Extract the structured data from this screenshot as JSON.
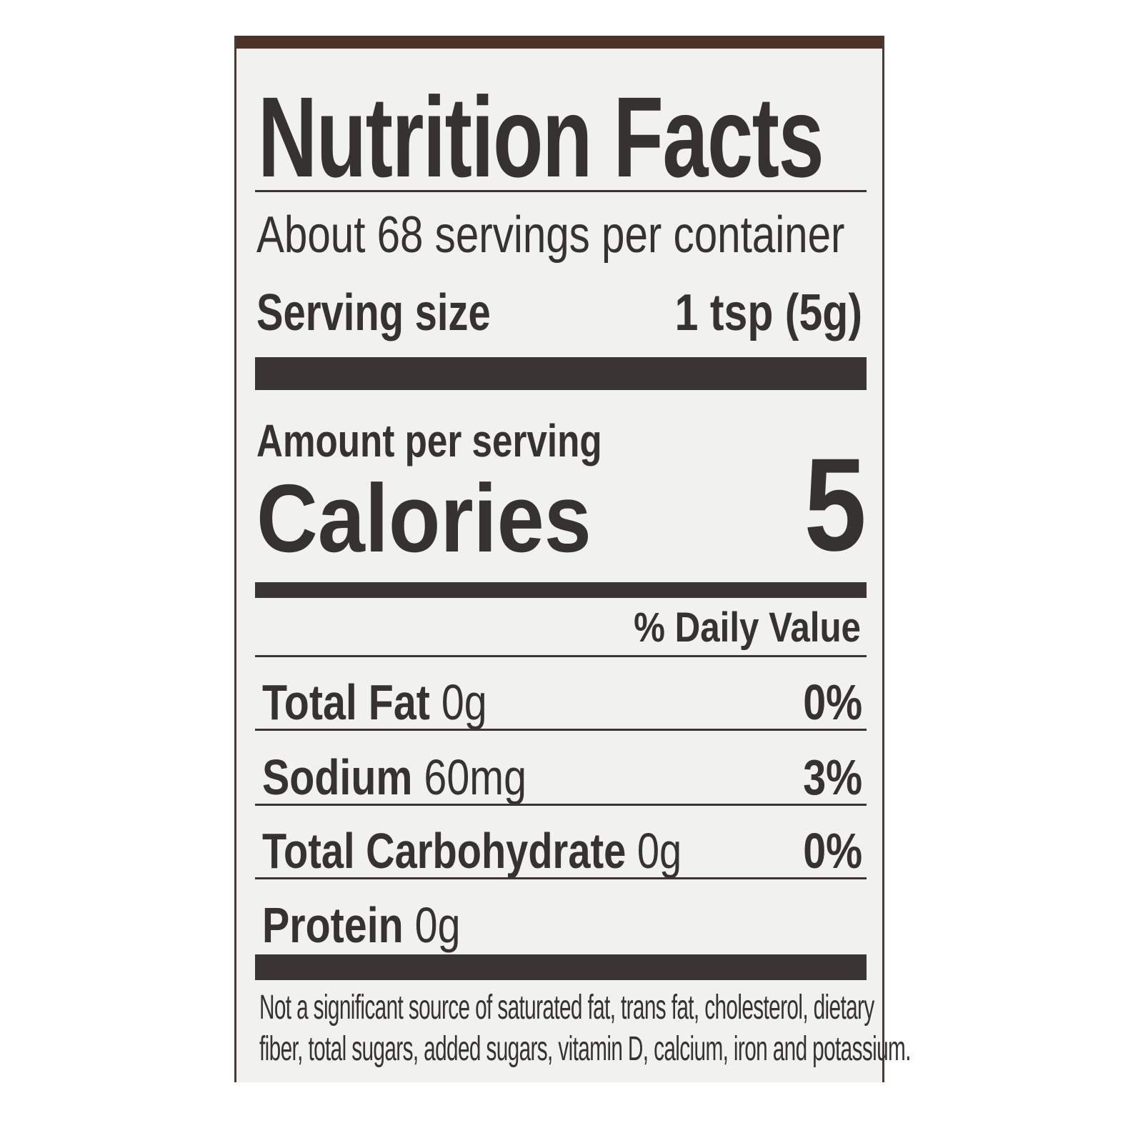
{
  "title": "Nutrition Facts",
  "servings_per_container": "About 68 servings per container",
  "serving_size": {
    "label": "Serving size",
    "value": "1 tsp (5g)"
  },
  "amount_per_serving": "Amount per serving",
  "calories": {
    "label": "Calories",
    "value": "5"
  },
  "daily_value_header": "% Daily Value",
  "nutrients": [
    {
      "name": "Total Fat",
      "amount": "0g",
      "dv": "0%"
    },
    {
      "name": "Sodium",
      "amount": "60mg",
      "dv": "3%"
    },
    {
      "name": "Total Carbohydrate",
      "amount": "0g",
      "dv": "0%"
    },
    {
      "name": "Protein",
      "amount": "0g",
      "dv": ""
    }
  ],
  "footnote": [
    "Not a significant source of saturated fat, trans fat, cholesterol, dietary",
    "fiber, total sugars, added sugars, vitamin D, calcium, iron and potassium."
  ],
  "colors": {
    "ink": "#363232",
    "paper": "#f1f1f0",
    "container": "#4c3328"
  }
}
